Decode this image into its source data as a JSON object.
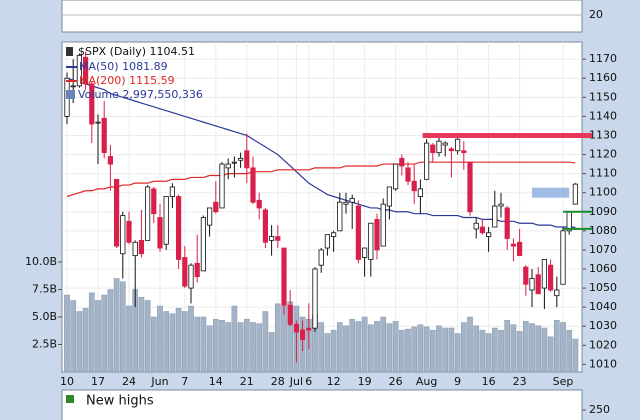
{
  "chart_data": {
    "type": "candlestick",
    "title": "$SPX (Daily) 1104.51",
    "categories": [
      "10",
      null,
      null,
      null,
      null,
      "17",
      null,
      null,
      null,
      null,
      "24",
      null,
      null,
      null,
      null,
      "Jun",
      null,
      null,
      null,
      "7",
      null,
      null,
      null,
      null,
      "14",
      null,
      null,
      null,
      null,
      "21",
      null,
      null,
      null,
      null,
      "28",
      null,
      null,
      "Jul",
      null,
      "6",
      null,
      null,
      null,
      "12",
      null,
      null,
      null,
      null,
      "19",
      null,
      null,
      null,
      null,
      "26",
      null,
      null,
      null,
      null,
      "Aug",
      null,
      null,
      null,
      null,
      "9",
      null,
      null,
      null,
      null,
      "16",
      null,
      null,
      null,
      null,
      "23",
      null,
      null,
      null,
      null,
      null,
      null,
      "Sep",
      null,
      null
    ],
    "ohlc": [
      [
        1140,
        1163,
        1136,
        1160
      ],
      [
        1156,
        1170,
        1147,
        1156
      ],
      [
        1156,
        1173,
        1155,
        1172
      ],
      [
        1171,
        1174,
        1154,
        1157
      ],
      [
        1157,
        1158,
        1126,
        1136
      ],
      [
        1137,
        1141,
        1115,
        1137
      ],
      [
        1139,
        1148,
        1118,
        1121
      ],
      [
        1119,
        1125,
        1101,
        1115
      ],
      [
        1107,
        1107,
        1071,
        1072
      ],
      [
        1068,
        1090,
        1055,
        1088
      ],
      [
        1085,
        1090,
        1073,
        1074
      ],
      [
        1067,
        1075,
        1040,
        1074
      ],
      [
        1075,
        1091,
        1066,
        1068
      ],
      [
        1075,
        1104,
        1075,
        1103
      ],
      [
        1102,
        1103,
        1084,
        1089
      ],
      [
        1087,
        1094,
        1069,
        1071
      ],
      [
        1073,
        1098,
        1070,
        1098
      ],
      [
        1098,
        1105,
        1092,
        1103
      ],
      [
        1098,
        1099,
        1060,
        1065
      ],
      [
        1066,
        1072,
        1050,
        1051
      ],
      [
        1050,
        1063,
        1042,
        1062
      ],
      [
        1063,
        1078,
        1053,
        1056
      ],
      [
        1059,
        1088,
        1059,
        1087
      ],
      [
        1083,
        1092,
        1077,
        1092
      ],
      [
        1095,
        1106,
        1089,
        1090
      ],
      [
        1092,
        1116,
        1092,
        1115
      ],
      [
        1113,
        1118,
        1107,
        1115
      ],
      [
        1116,
        1119,
        1108,
        1116
      ],
      [
        1117,
        1121,
        1113,
        1118
      ],
      [
        1122,
        1131,
        1105,
        1113
      ],
      [
        1113,
        1119,
        1094,
        1095
      ],
      [
        1096,
        1100,
        1086,
        1092
      ],
      [
        1091,
        1092,
        1071,
        1074
      ],
      [
        1075,
        1083,
        1067,
        1077
      ],
      [
        1077,
        1083,
        1071,
        1075
      ],
      [
        1071,
        1071,
        1036,
        1041
      ],
      [
        1041,
        1049,
        1030,
        1031
      ],
      [
        1031,
        1033,
        1011,
        1027
      ],
      [
        1028,
        1033,
        1017,
        1023
      ],
      [
        1029,
        1042,
        1018,
        1028
      ],
      [
        1029,
        1061,
        1027,
        1060
      ],
      [
        1062,
        1071,
        1058,
        1070
      ],
      [
        1071,
        1078,
        1067,
        1078
      ],
      [
        1077,
        1080,
        1069,
        1079
      ],
      [
        1080,
        1100,
        1080,
        1095
      ],
      [
        1094,
        1100,
        1089,
        1095
      ],
      [
        1095,
        1099,
        1081,
        1097
      ],
      [
        1093,
        1096,
        1063,
        1065
      ],
      [
        1066,
        1071,
        1056,
        1071
      ],
      [
        1065,
        1084,
        1056,
        1084
      ],
      [
        1086,
        1089,
        1065,
        1070
      ],
      [
        1072,
        1097,
        1072,
        1094
      ],
      [
        1093,
        1103,
        1086,
        1103
      ],
      [
        1102,
        1115,
        1101,
        1115
      ],
      [
        1118,
        1120,
        1109,
        1114
      ],
      [
        1113,
        1116,
        1104,
        1106
      ],
      [
        1106,
        1115,
        1094,
        1101
      ],
      [
        1098,
        1107,
        1089,
        1102
      ],
      [
        1107,
        1128,
        1107,
        1126
      ],
      [
        1125,
        1126,
        1116,
        1121
      ],
      [
        1121,
        1129,
        1119,
        1127
      ],
      [
        1125,
        1127,
        1119,
        1126
      ],
      [
        1123,
        1124,
        1108,
        1122
      ],
      [
        1122,
        1130,
        1120,
        1128
      ],
      [
        1122,
        1127,
        1112,
        1121
      ],
      [
        1116,
        1116,
        1088,
        1090
      ],
      [
        1081,
        1087,
        1076,
        1084
      ],
      [
        1082,
        1086,
        1078,
        1079
      ],
      [
        1077,
        1082,
        1069,
        1079
      ],
      [
        1082,
        1101,
        1082,
        1093
      ],
      [
        1093,
        1100,
        1087,
        1094
      ],
      [
        1092,
        1093,
        1070,
        1076
      ],
      [
        1073,
        1076,
        1064,
        1072
      ],
      [
        1074,
        1081,
        1067,
        1067
      ],
      [
        1061,
        1062,
        1046,
        1052
      ],
      [
        1049,
        1060,
        1040,
        1055
      ],
      [
        1057,
        1061,
        1047,
        1047
      ],
      [
        1050,
        1065,
        1039,
        1065
      ],
      [
        1062,
        1065,
        1048,
        1049
      ],
      [
        1046,
        1056,
        1040,
        1049
      ],
      [
        1052,
        1082,
        1052,
        1080
      ],
      [
        1080,
        1090,
        1078,
        1090
      ],
      [
        1094,
        1105,
        1094,
        1104.51
      ]
    ],
    "up_color": "#ffffff",
    "down_color": "#d8204a",
    "series": [
      {
        "name": "MA(50) 1081.89",
        "color": "#2a3a9a",
        "values": [
          1160,
          1159,
          1158,
          1157,
          1156,
          1155,
          1154,
          1152,
          1151,
          1150,
          1149,
          1148,
          1147,
          1146,
          1145,
          1144,
          1143,
          1142,
          1141,
          1140,
          1139,
          1138,
          1137,
          1136,
          1135,
          1134,
          1133,
          1132,
          1131,
          1130,
          1128,
          1126,
          1124,
          1122,
          1120,
          1117,
          1114,
          1111,
          1108,
          1105,
          1103,
          1101,
          1099,
          1098,
          1097,
          1096,
          1095,
          1094,
          1093,
          1092,
          1092,
          1091,
          1091,
          1090,
          1090,
          1090,
          1089,
          1089,
          1089,
          1088,
          1088,
          1088,
          1088,
          1088,
          1087,
          1087,
          1087,
          1086,
          1086,
          1086,
          1085,
          1085,
          1085,
          1084,
          1084,
          1084,
          1083,
          1083,
          1083,
          1082,
          1082,
          1082,
          1081.89
        ]
      },
      {
        "name": "MA(200) 1115.59",
        "color": "#e02828",
        "values": [
          1098,
          1099,
          1100,
          1101,
          1101,
          1102,
          1102,
          1103,
          1103,
          1104,
          1104,
          1105,
          1105,
          1105,
          1106,
          1106,
          1106,
          1107,
          1107,
          1107,
          1108,
          1108,
          1108,
          1109,
          1109,
          1109,
          1110,
          1110,
          1110,
          1110,
          1111,
          1111,
          1111,
          1111,
          1112,
          1112,
          1112,
          1112,
          1112,
          1112,
          1113,
          1113,
          1113,
          1113,
          1113,
          1114,
          1114,
          1114,
          1114,
          1114,
          1114,
          1115,
          1115,
          1115,
          1115,
          1115,
          1115,
          1116,
          1116,
          1116,
          1116,
          1116,
          1116,
          1116,
          1116,
          1116,
          1116,
          1116,
          1116,
          1116,
          1116,
          1116,
          1116,
          1116,
          1116,
          1116,
          1116,
          1116,
          1116,
          1116,
          1116,
          1116,
          1115.59
        ]
      },
      {
        "name": "Volume 2,997,550,336",
        "color": "#a4b4c8",
        "axis": "y2",
        "values": [
          7.0,
          6.5,
          5.5,
          5.8,
          7.2,
          6.5,
          7.0,
          7.5,
          8.5,
          8.2,
          6.0,
          7.5,
          6.8,
          6.5,
          5.0,
          6.0,
          5.5,
          5.3,
          5.8,
          5.5,
          6.0,
          5.0,
          5.0,
          4.2,
          4.8,
          4.7,
          4.5,
          6.0,
          4.5,
          4.8,
          4.5,
          4.4,
          5.5,
          3.6,
          6.2,
          6.0,
          6.4,
          6.0,
          5.0,
          4.8,
          5.2,
          4.5,
          3.5,
          3.8,
          4.5,
          4.2,
          4.8,
          4.6,
          5.0,
          4.3,
          4.6,
          5.0,
          4.4,
          4.6,
          3.8,
          3.9,
          4.1,
          4.3,
          4.1,
          3.8,
          4.2,
          4.0,
          4.0,
          3.5,
          4.5,
          5.0,
          4.2,
          3.8,
          3.5,
          4.0,
          3.8,
          4.7,
          4.3,
          3.7,
          4.6,
          4.4,
          4.2,
          4.0,
          3.2,
          4.7,
          4.5,
          3.8,
          2.99755
        ]
      }
    ],
    "levels": [
      {
        "value": 1130,
        "color": "#e8375a"
      },
      {
        "value": 1100,
        "color": "#8fb0e0"
      },
      {
        "value": 1090,
        "color": "#1a8a2a"
      },
      {
        "value": 1081,
        "color": "#1a8a2a"
      }
    ],
    "ylim": [
      1006,
      1179
    ],
    "yticks": [
      1010,
      1020,
      1030,
      1040,
      1050,
      1060,
      1070,
      1080,
      1090,
      1100,
      1110,
      1120,
      1130,
      1140,
      1150,
      1160,
      1170
    ],
    "y2lim": [
      0,
      30
    ],
    "y2ticks": [
      {
        "value": 2.5,
        "label": "2.5B"
      },
      {
        "value": 5,
        "label": "5.0B"
      },
      {
        "value": 7.5,
        "label": "7.5B"
      },
      {
        "value": 10,
        "label": "10.0B"
      }
    ],
    "grid": true
  },
  "stochastic": {
    "yticks": [
      20
    ]
  },
  "new_highs": {
    "label": "New highs",
    "color": "#2a8a2a",
    "yticks": [
      250
    ]
  }
}
